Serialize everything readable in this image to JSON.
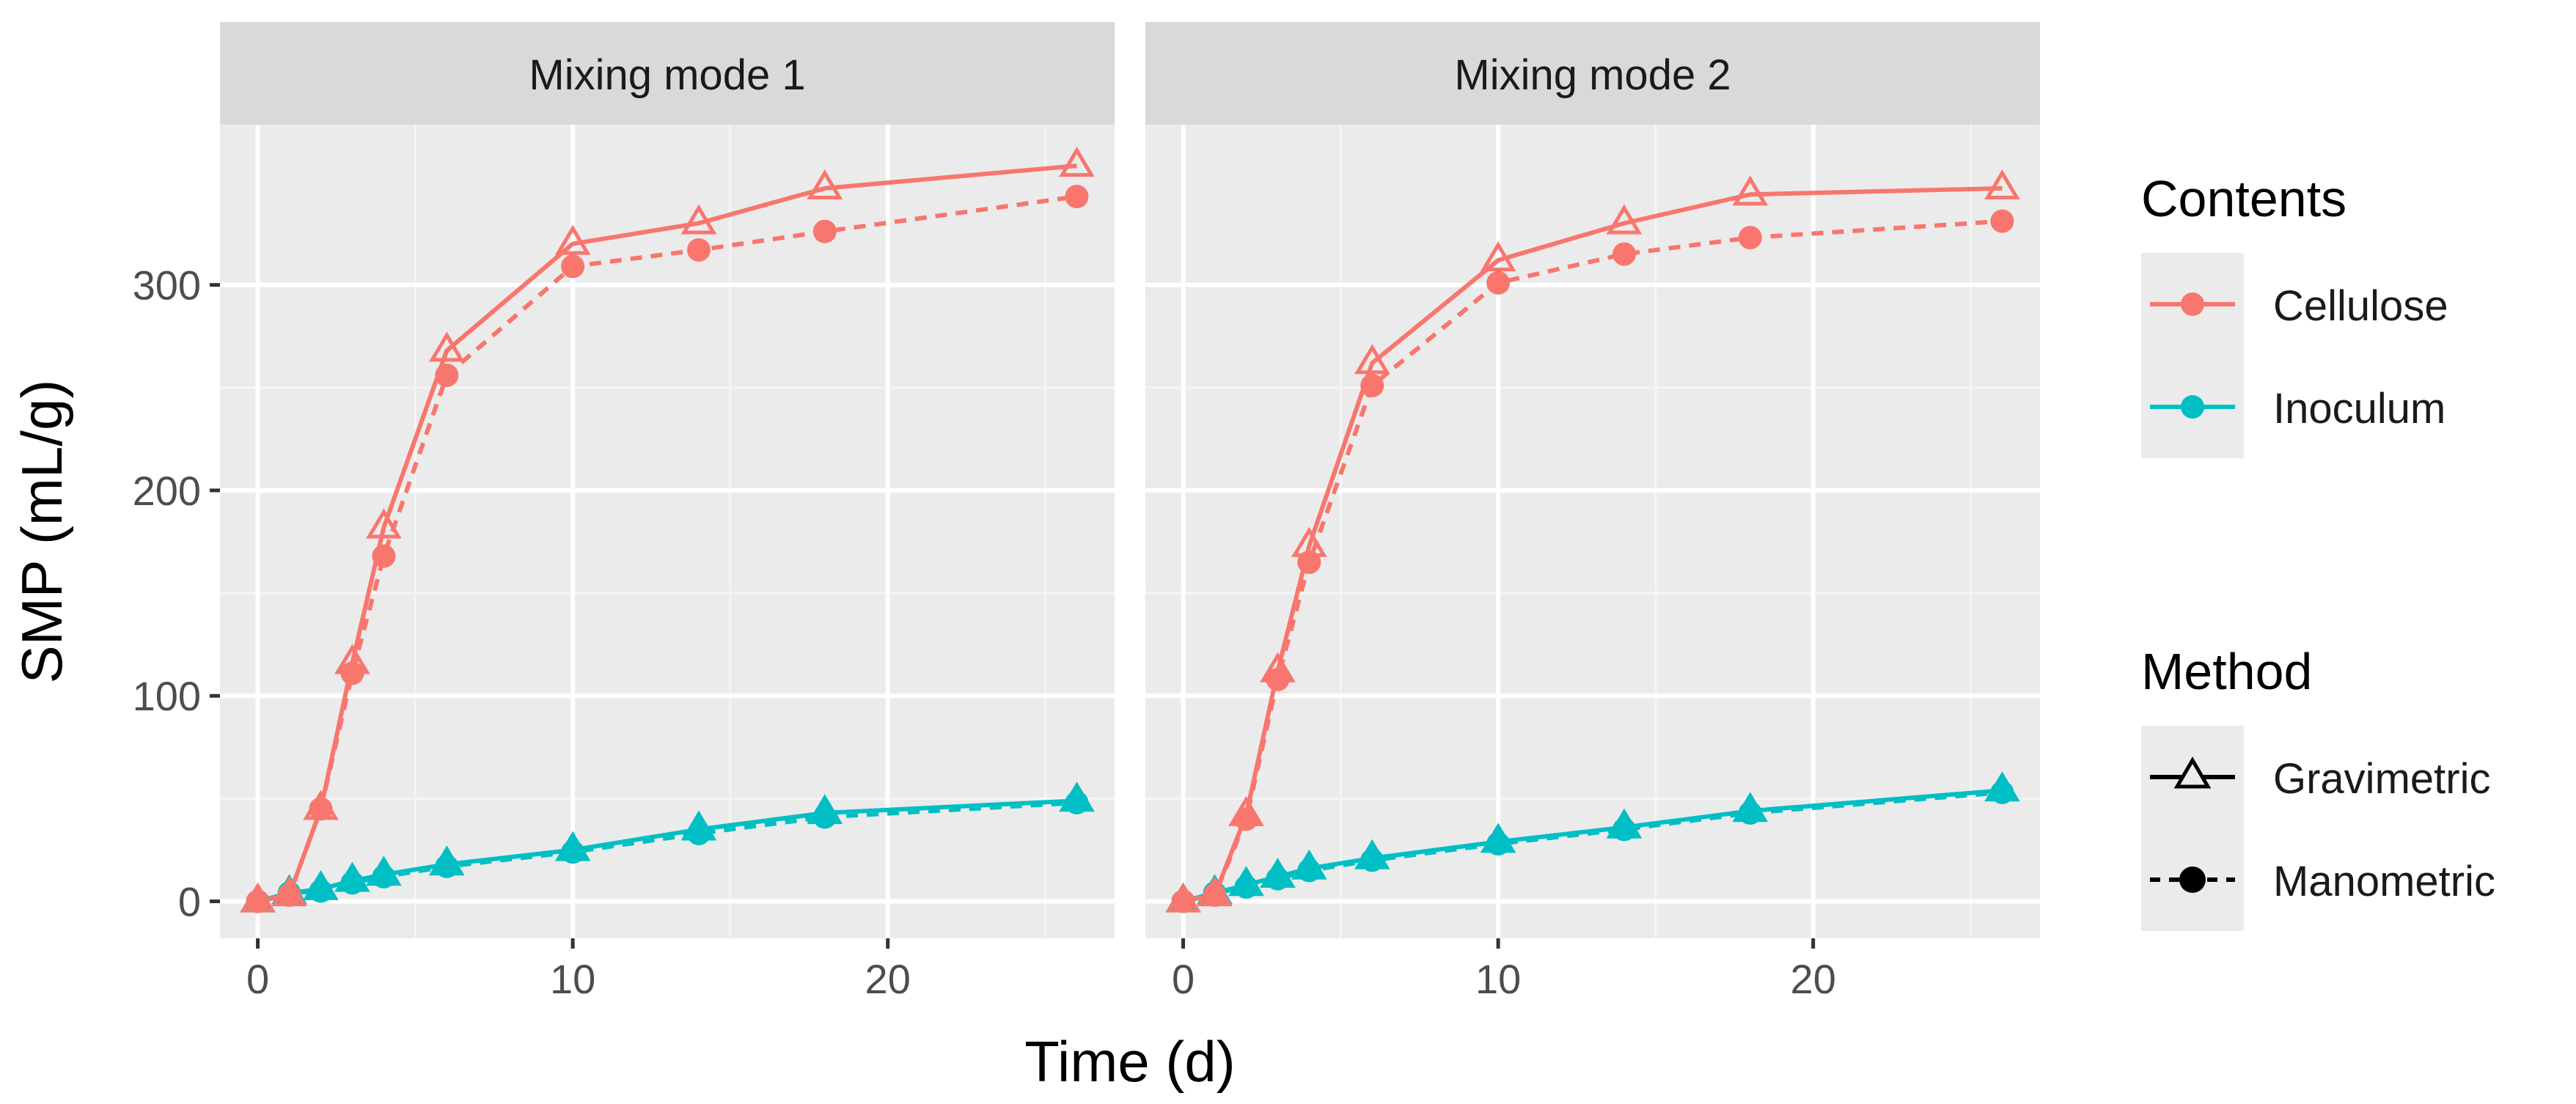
{
  "chart_data": {
    "type": "line",
    "facet_variable": "Mixing mode",
    "panels": [
      {
        "strip_label": "Mixing mode 1",
        "series": [
          {
            "name": "Cellulose - Gravimetric",
            "contents": "Cellulose",
            "method": "Gravimetric",
            "x": [
              0,
              1,
              2,
              3,
              4,
              6,
              10,
              14,
              18,
              26
            ],
            "y": [
              0,
              3,
              45,
              116,
              182,
              268,
              320,
              330,
              347,
              358
            ]
          },
          {
            "name": "Cellulose - Manometric",
            "contents": "Cellulose",
            "method": "Manometric",
            "x": [
              0,
              1,
              2,
              3,
              4,
              6,
              10,
              14,
              18,
              26
            ],
            "y": [
              0,
              3,
              45,
              111,
              168,
              256,
              309,
              317,
              326,
              343
            ]
          },
          {
            "name": "Inoculum - Gravimetric",
            "contents": "Inoculum",
            "method": "Gravimetric",
            "x": [
              0,
              1,
              2,
              3,
              4,
              6,
              10,
              14,
              18,
              26
            ],
            "y": [
              0,
              4,
              6,
              10,
              13,
              18,
              25,
              35,
              43,
              49
            ]
          },
          {
            "name": "Inoculum - Manometric",
            "contents": "Inoculum",
            "method": "Manometric",
            "x": [
              0,
              1,
              2,
              3,
              4,
              6,
              10,
              14,
              18,
              26
            ],
            "y": [
              0,
              4,
              5,
              9,
              12,
              17,
              24,
              33,
              41,
              48
            ]
          }
        ]
      },
      {
        "strip_label": "Mixing mode 2",
        "series": [
          {
            "name": "Cellulose - Gravimetric",
            "contents": "Cellulose",
            "method": "Gravimetric",
            "x": [
              0,
              1,
              2,
              3,
              4,
              6,
              10,
              14,
              18,
              26
            ],
            "y": [
              0,
              3,
              42,
              112,
              173,
              262,
              312,
              330,
              344,
              347
            ]
          },
          {
            "name": "Cellulose - Manometric",
            "contents": "Cellulose",
            "method": "Manometric",
            "x": [
              0,
              1,
              2,
              3,
              4,
              6,
              10,
              14,
              18,
              26
            ],
            "y": [
              0,
              3,
              40,
              108,
              165,
              251,
              301,
              315,
              323,
              331
            ]
          },
          {
            "name": "Inoculum - Gravimetric",
            "contents": "Inoculum",
            "method": "Gravimetric",
            "x": [
              0,
              1,
              2,
              3,
              4,
              6,
              10,
              14,
              18,
              26
            ],
            "y": [
              0,
              4,
              8,
              12,
              16,
              21,
              29,
              36,
              44,
              54
            ]
          },
          {
            "name": "Inoculum - Manometric",
            "contents": "Inoculum",
            "method": "Manometric",
            "x": [
              0,
              1,
              2,
              3,
              4,
              6,
              10,
              14,
              18,
              26
            ],
            "y": [
              0,
              4,
              7,
              11,
              15,
              20,
              28,
              35,
              43,
              53
            ]
          }
        ]
      }
    ],
    "xlabel": "Time (d)",
    "ylabel": "SMP (mL/g)",
    "xlim": [
      -1.2,
      27.2
    ],
    "ylim": [
      -18,
      378
    ],
    "xticks": [
      0,
      10,
      20
    ],
    "yticks": [
      0,
      100,
      200,
      300
    ],
    "grid": true,
    "legend": {
      "placement": "right",
      "contents": {
        "title": "Contents",
        "items": [
          {
            "label": "Cellulose",
            "color": "#F8766D"
          },
          {
            "label": "Inoculum",
            "color": "#00BFC4"
          }
        ]
      },
      "method": {
        "title": "Method",
        "items": [
          {
            "label": "Gravimetric",
            "marker": "open-triangle",
            "linetype": "solid"
          },
          {
            "label": "Manometric",
            "marker": "filled-circle",
            "linetype": "dashed"
          }
        ]
      }
    },
    "colors": {
      "Cellulose": "#F8766D",
      "Inoculum": "#00BFC4",
      "panel_background": "#EBEBEB",
      "strip_background": "#D9D9D9",
      "grid_major": "#FFFFFF",
      "legend_key_background": "#EBEBEB"
    }
  }
}
